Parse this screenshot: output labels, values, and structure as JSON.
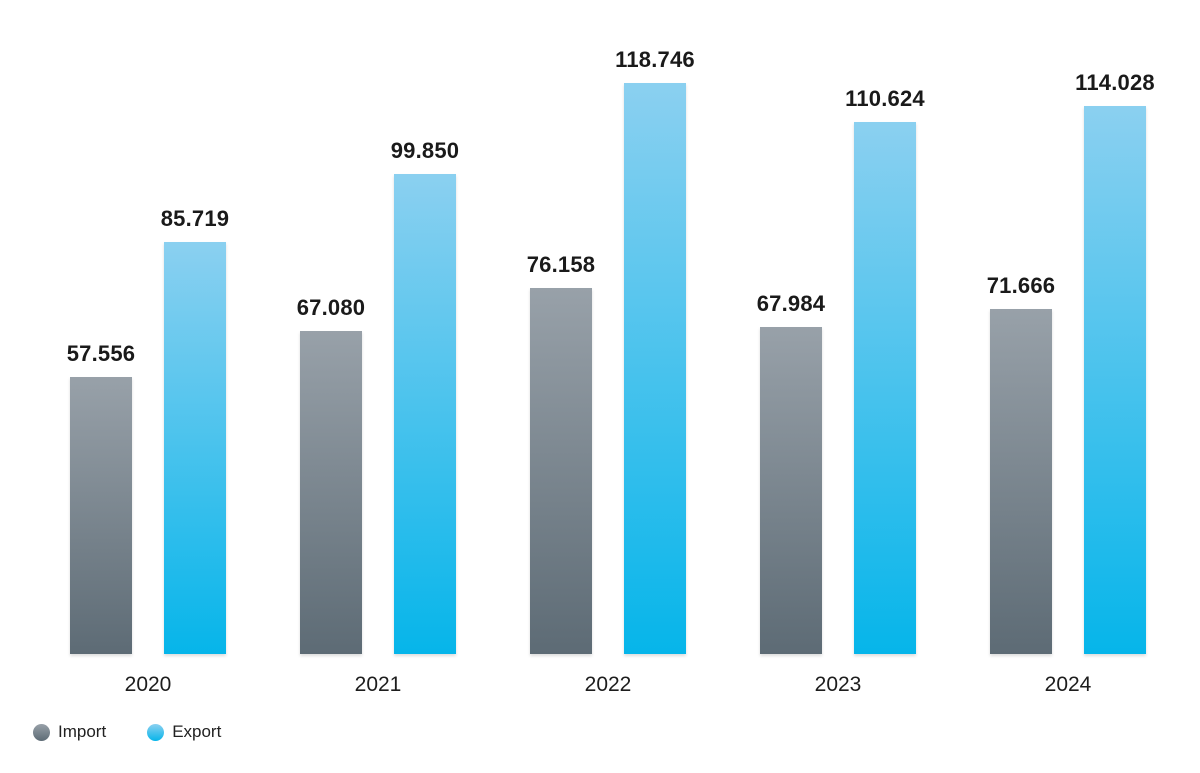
{
  "chart_data": {
    "type": "bar",
    "title": "",
    "xlabel": "",
    "ylabel": "",
    "grid": false,
    "legend_position": "bottom-left",
    "categories": [
      "2020",
      "2021",
      "2022",
      "2023",
      "2024"
    ],
    "series": [
      {
        "name": "Import",
        "values": [
          57.556,
          67.08,
          76.158,
          67.984,
          71.666
        ],
        "labels": [
          "57.556",
          "67.080",
          "76.158",
          "67.984",
          "71.666"
        ],
        "color_top": "#98a1a9",
        "color_bottom": "#5d6b75"
      },
      {
        "name": "Export",
        "values": [
          85.719,
          99.85,
          118.746,
          110.624,
          114.028
        ],
        "labels": [
          "85.719",
          "99.850",
          "118.746",
          "110.624",
          "114.028"
        ],
        "color_top": "#8bd0f0",
        "color_bottom": "#06b5ea"
      }
    ],
    "ylim": [
      0,
      119
    ],
    "text_color": "#1a1a1a"
  }
}
